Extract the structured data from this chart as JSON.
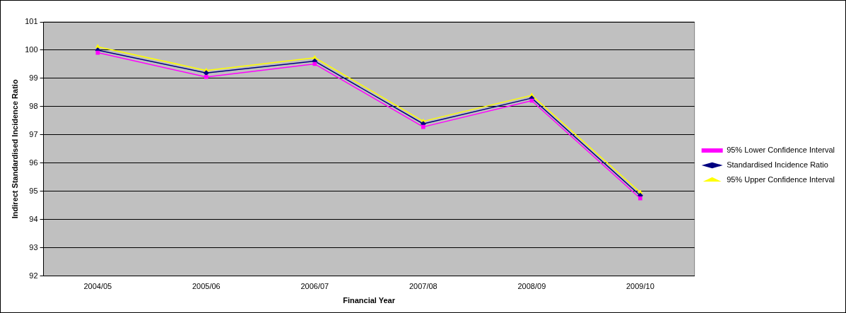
{
  "chart_data": {
    "type": "line",
    "xlabel": "Financial Year",
    "ylabel": "Indirect Standardised Incidence Ratio",
    "categories": [
      "2004/05",
      "2005/06",
      "2006/07",
      "2007/08",
      "2008/09",
      "2009/10"
    ],
    "series": [
      {
        "name": "Standardised Incidence Ratio",
        "color": "#000080",
        "marker": "diamond",
        "values": [
          100.0,
          99.19,
          99.61,
          97.39,
          98.3,
          94.85
        ]
      },
      {
        "name": "95% Lower Confidence Interval",
        "color": "#ff00ff",
        "marker": "square",
        "values": [
          99.91,
          99.05,
          99.51,
          97.28,
          98.21,
          94.75
        ]
      },
      {
        "name": "95% Upper Confidence Interval",
        "color": "#ffff00",
        "marker": "triangle",
        "values": [
          100.12,
          99.28,
          99.73,
          97.48,
          98.4,
          94.96
        ]
      }
    ],
    "ylim": [
      92,
      101
    ],
    "yticks": [
      92,
      93,
      94,
      95,
      96,
      97,
      98,
      99,
      100,
      101
    ],
    "grid": "y",
    "legend": "right",
    "line_style": "solid"
  }
}
